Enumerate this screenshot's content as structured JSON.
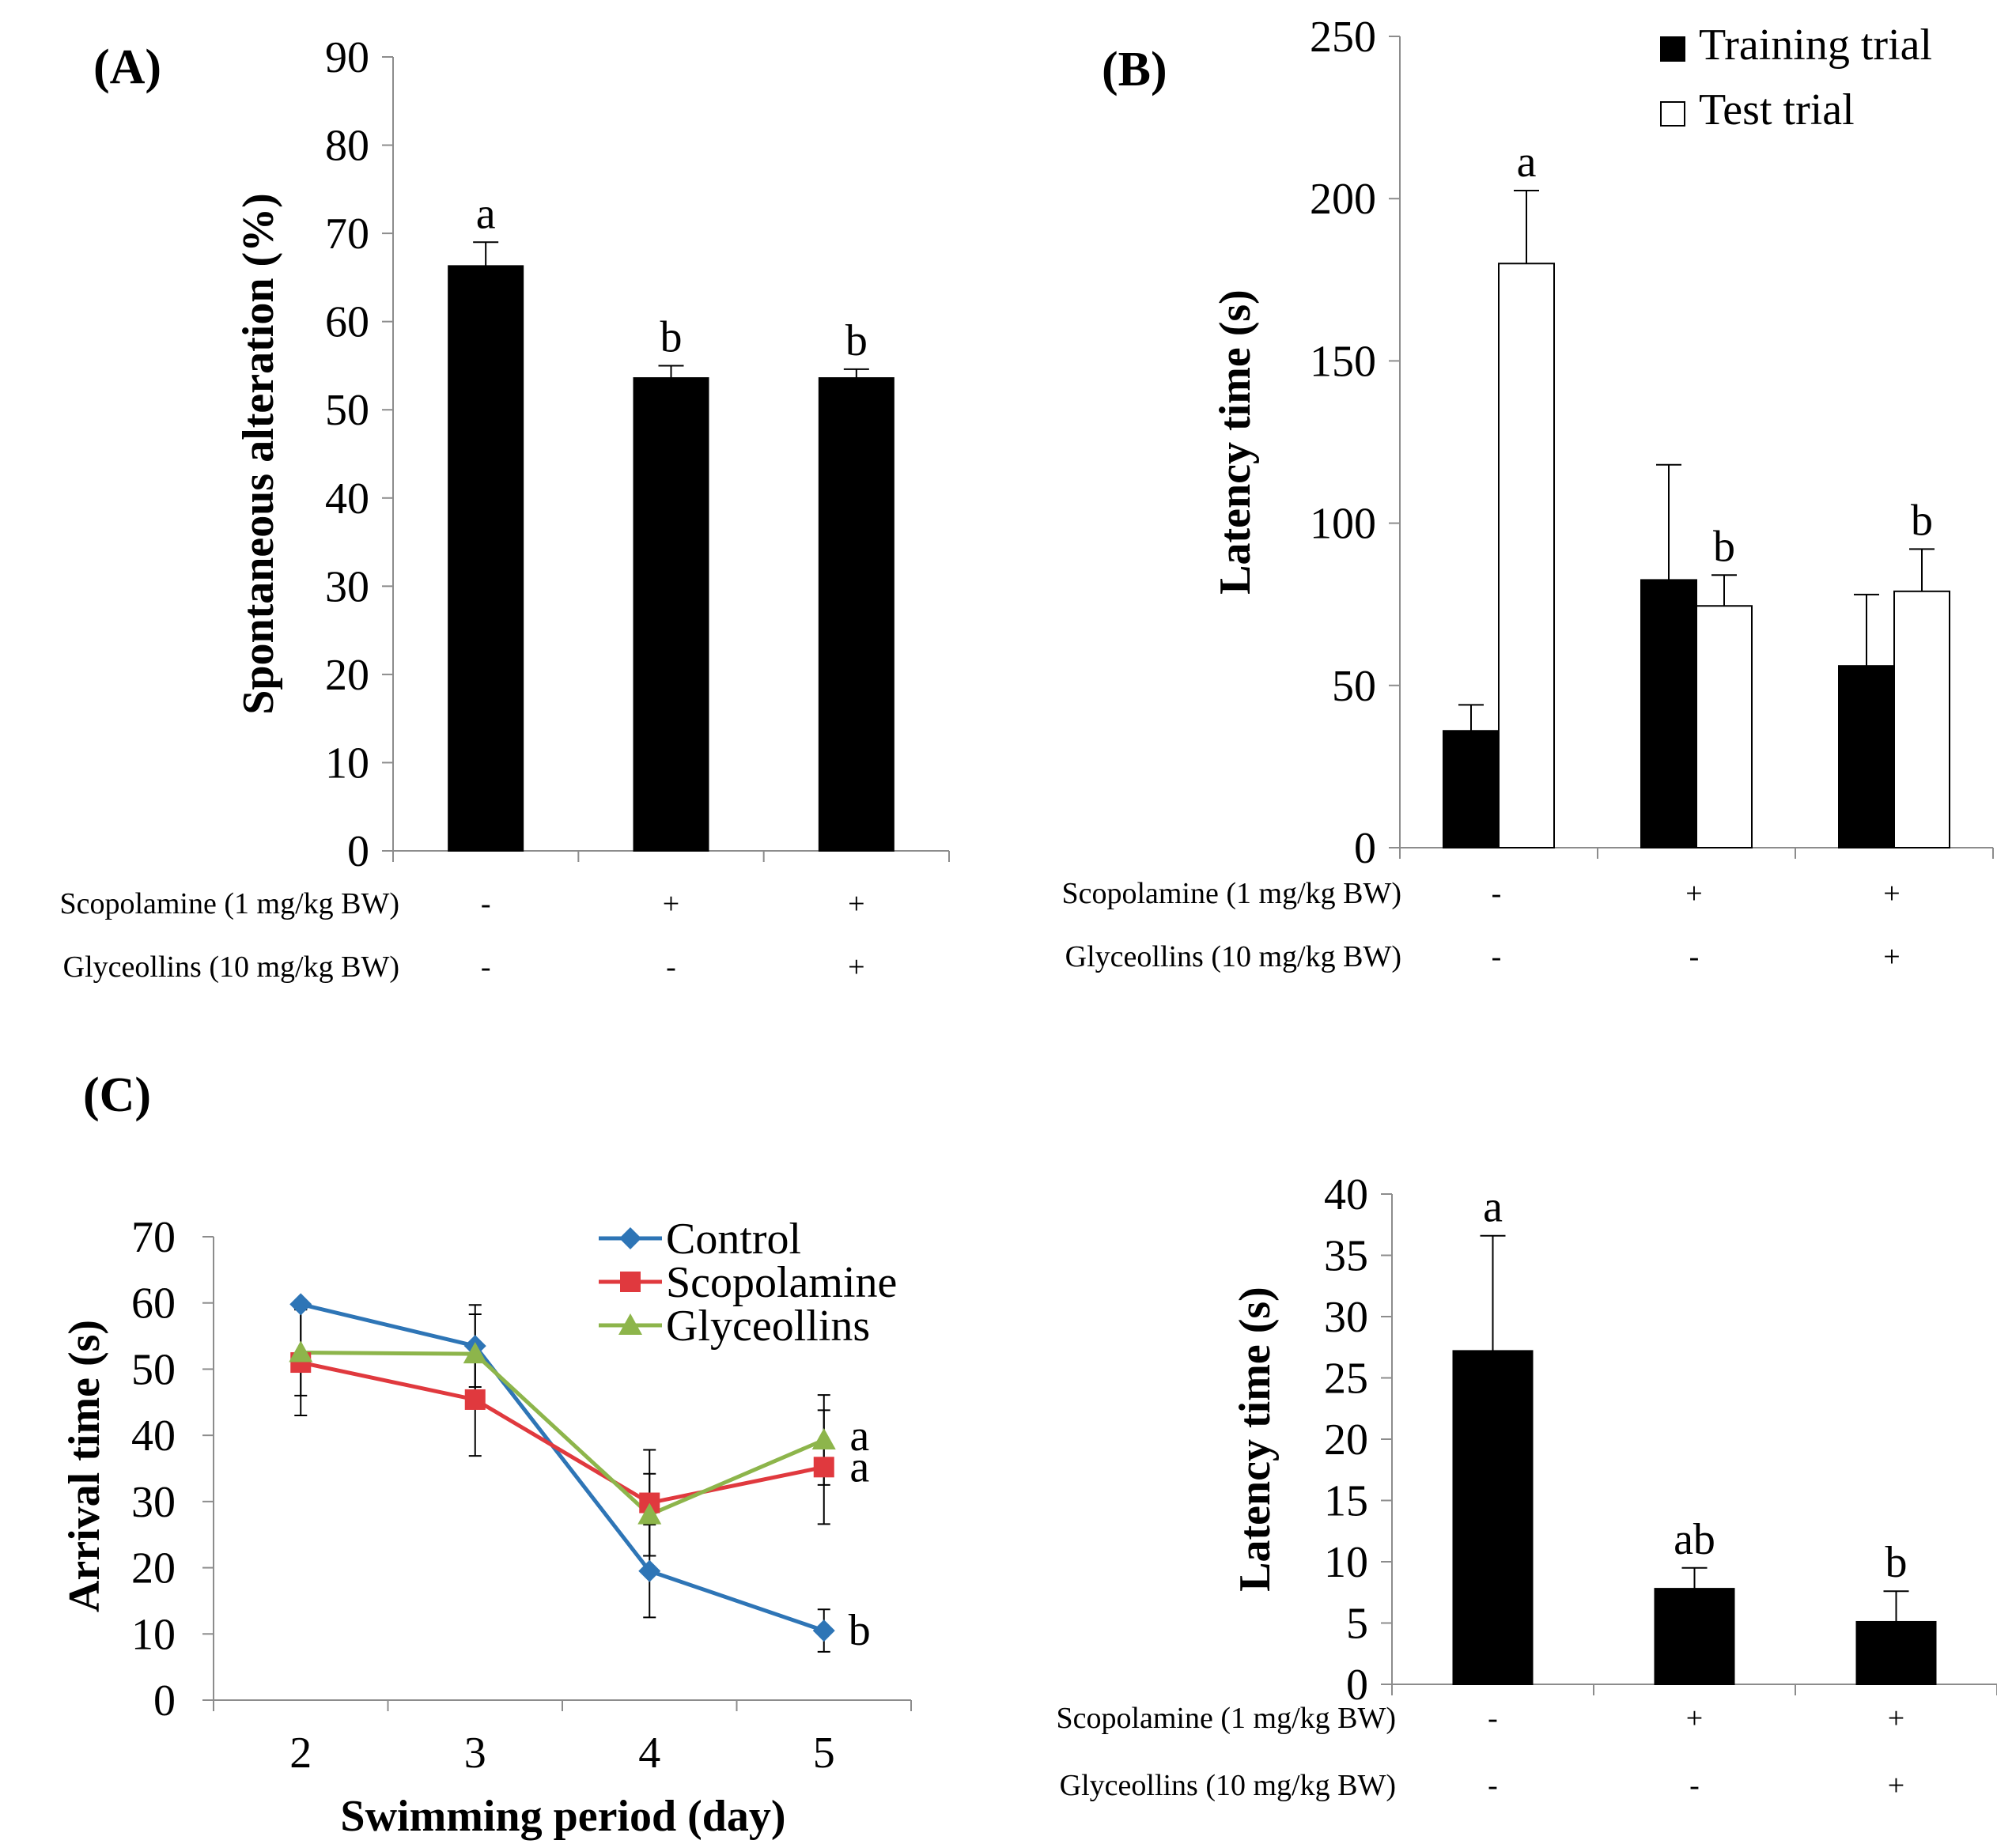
{
  "chart_data": [
    {
      "panel": "(A)",
      "type": "bar",
      "title": "",
      "ylabel": "Spontaneous  alteration  (%)",
      "ylim": [
        0,
        90
      ],
      "yticks": [
        0,
        10,
        20,
        30,
        40,
        50,
        60,
        70,
        80,
        90
      ],
      "conditions": [
        {
          "label": "Scopolamine  (1 mg/kg  BW)",
          "marks": [
            "-",
            "+",
            "+"
          ]
        },
        {
          "label": "Glyceollins  (10 mg/kg  BW)",
          "marks": [
            "-",
            "-",
            "+"
          ]
        }
      ],
      "series": [
        {
          "name": "Spontaneous alteration",
          "color": "#000000",
          "values": [
            66.3,
            53.6,
            53.6
          ],
          "errors": [
            2.7,
            1.4,
            1.0
          ],
          "sig_labels": [
            "a",
            "b",
            "b"
          ]
        }
      ]
    },
    {
      "panel": "(B)",
      "type": "bar",
      "title": "",
      "ylabel": "Latency time (s)",
      "ylim": [
        0,
        250
      ],
      "yticks": [
        0,
        50,
        100,
        150,
        200,
        250
      ],
      "legend": [
        "Training trial",
        "Test trial"
      ],
      "conditions": [
        {
          "label": "Scopolamine  (1 mg/kg  BW)",
          "marks": [
            "-",
            "+",
            "+"
          ]
        },
        {
          "label": "Glyceollins  (10 mg/kg  BW)",
          "marks": [
            "-",
            "-",
            "+"
          ]
        }
      ],
      "series": [
        {
          "name": "Training trial",
          "color": "#000000",
          "values": [
            36,
            82.5,
            56
          ],
          "errors": [
            8,
            35.5,
            22
          ],
          "sig_labels": [
            "",
            "",
            ""
          ]
        },
        {
          "name": "Test trial",
          "color": "#ffffff",
          "values": [
            180,
            74.5,
            79
          ],
          "errors": [
            22.5,
            9.5,
            13
          ],
          "sig_labels": [
            "a",
            "b",
            "b"
          ]
        }
      ]
    },
    {
      "panel": "(C)",
      "type": "line",
      "title": "",
      "xlabel": "Swimming  period (day)",
      "ylabel": "Arrival  time (s)",
      "ylim": [
        0,
        70
      ],
      "yticks": [
        0,
        10,
        20,
        30,
        40,
        50,
        60,
        70
      ],
      "x": [
        "2",
        "3",
        "4",
        "5"
      ],
      "series": [
        {
          "name": "Control",
          "color": "#2E75B6",
          "marker": "diamond",
          "values": [
            59.8,
            53.5,
            19.5,
            10.5
          ],
          "errors": [
            0,
            6.2,
            7.0,
            3.2
          ],
          "end_label": "b"
        },
        {
          "name": "Scopolamine",
          "color": "#E0393E",
          "marker": "square",
          "values": [
            51.0,
            45.4,
            29.8,
            35.2
          ],
          "errors": [
            8.0,
            8.5,
            8.0,
            8.6
          ],
          "end_label": "a"
        },
        {
          "name": "Glyceollins",
          "color": "#8DB54B",
          "marker": "triangle",
          "values": [
            52.5,
            52.3,
            28.0,
            39.3
          ],
          "errors": [
            6.5,
            6.0,
            6.2,
            6.8
          ],
          "end_label": "a"
        }
      ]
    },
    {
      "panel": "",
      "type": "bar",
      "title": "",
      "ylabel": "Latency time (s)",
      "ylim": [
        0,
        40
      ],
      "yticks": [
        0,
        5,
        10,
        15,
        20,
        25,
        30,
        35,
        40
      ],
      "conditions": [
        {
          "label": "Scopolamine  (1 mg/kg  BW)",
          "marks": [
            "-",
            "+",
            "+"
          ]
        },
        {
          "label": "Glyceollins  (10 mg/kg  BW)",
          "marks": [
            "-",
            "-",
            "+"
          ]
        }
      ],
      "series": [
        {
          "name": "Latency time",
          "color": "#000000",
          "values": [
            27.2,
            7.8,
            5.1
          ],
          "errors": [
            9.4,
            1.7,
            2.5
          ],
          "sig_labels": [
            "a",
            "ab",
            "b"
          ]
        }
      ]
    }
  ]
}
